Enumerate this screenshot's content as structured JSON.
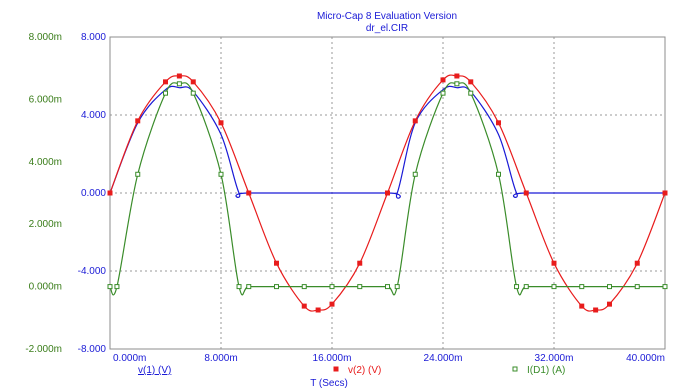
{
  "chart_data": {
    "type": "line",
    "title": "Micro-Cap 8 Evaluation Version",
    "subtitle": "dr_el.CIR",
    "xlabel": "T (Secs)",
    "x_range": [
      0,
      0.04
    ],
    "x_ticks": [
      "0.000m",
      "8.000m",
      "16.000m",
      "24.000m",
      "32.000m",
      "40.000m"
    ],
    "y_left": {
      "range": [
        -8,
        8
      ],
      "ticks": [
        "8.000",
        "4.000",
        "0.000",
        "-4.000",
        "-8.000"
      ],
      "color": "#1a1ad6"
    },
    "y_left_outer": {
      "range": [
        -0.002,
        0.008
      ],
      "ticks": [
        "8.000m",
        "6.000m",
        "4.000m",
        "2.000m",
        "0.000m",
        "-2.000m"
      ],
      "color": "#3a7d1a"
    },
    "grid": true,
    "series": [
      {
        "name": "v(1) (V)",
        "color": "#1a1ad6",
        "marker": "none",
        "axis": "left",
        "x": [
          0,
          0.002,
          0.004,
          0.005,
          0.006,
          0.008,
          0.0093,
          0.01,
          0.02,
          0.0207,
          0.022,
          0.024,
          0.025,
          0.026,
          0.028,
          0.0293,
          0.03,
          0.04
        ],
        "y": [
          0,
          3.6,
          5.3,
          5.4,
          5.2,
          3.0,
          0,
          0,
          0,
          0,
          3.6,
          5.3,
          5.4,
          5.2,
          3.0,
          0,
          0,
          0
        ]
      },
      {
        "name": "v(2) (V)",
        "color": "#e81c1c",
        "marker": "filled-square",
        "axis": "left",
        "x": [
          0,
          0.002,
          0.004,
          0.005,
          0.006,
          0.008,
          0.01,
          0.012,
          0.014,
          0.015,
          0.016,
          0.018,
          0.02,
          0.022,
          0.024,
          0.025,
          0.026,
          0.028,
          0.03,
          0.032,
          0.034,
          0.035,
          0.036,
          0.038,
          0.04
        ],
        "y": [
          0,
          3.7,
          5.7,
          6.0,
          5.7,
          3.6,
          0,
          -3.6,
          -5.8,
          -6.0,
          -5.7,
          -3.6,
          0,
          3.7,
          5.8,
          6.0,
          5.7,
          3.6,
          0,
          -3.6,
          -5.8,
          -6.0,
          -5.7,
          -3.6,
          0
        ]
      },
      {
        "name": "I(D1) (A)",
        "color": "#3a8c2a",
        "marker": "hollow-square",
        "axis": "left_outer",
        "x": [
          0,
          0.0005,
          0.002,
          0.004,
          0.005,
          0.006,
          0.008,
          0.0093,
          0.01,
          0.012,
          0.014,
          0.016,
          0.018,
          0.02,
          0.0207,
          0.022,
          0.024,
          0.025,
          0.026,
          0.028,
          0.0293,
          0.03,
          0.032,
          0.034,
          0.036,
          0.038,
          0.04
        ],
        "y": [
          0.0,
          0.0,
          0.0036,
          0.0062,
          0.0065,
          0.0062,
          0.0036,
          0,
          0,
          0,
          0,
          0,
          0,
          0,
          0,
          0.0036,
          0.0062,
          0.0065,
          0.0062,
          0.0036,
          0,
          0,
          0,
          0,
          0,
          0,
          0
        ]
      }
    ]
  }
}
